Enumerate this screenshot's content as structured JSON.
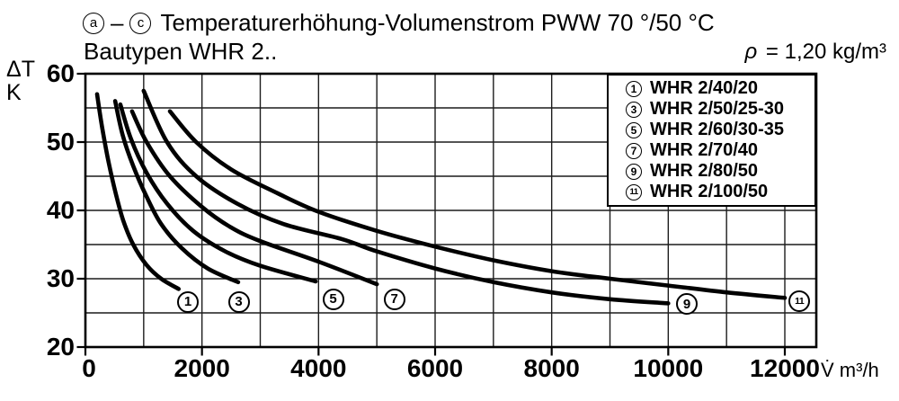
{
  "title": {
    "range_start": "a",
    "range_dash": "–",
    "range_end": "c",
    "text": "Temperaturerhöhung-Volumenstrom PWW 70 °/50 °C",
    "subtitle": "Bautypen WHR 2.."
  },
  "density": {
    "symbol": "ρ",
    "text": " = 1,20 kg/m³"
  },
  "axes": {
    "y_label_line1": "ΔT",
    "y_label_line2": "K",
    "y_ticks": [
      60,
      50,
      40,
      30,
      20
    ],
    "x_ticks": [
      0,
      2000,
      4000,
      6000,
      8000,
      10000,
      12000
    ],
    "x_unit": "V̇ m³/h"
  },
  "legend": {
    "items": [
      {
        "id": "1",
        "label": "WHR 2/40/20"
      },
      {
        "id": "3",
        "label": "WHR 2/50/25-30"
      },
      {
        "id": "5",
        "label": "WHR 2/60/30-35"
      },
      {
        "id": "7",
        "label": "WHR 2/70/40"
      },
      {
        "id": "9",
        "label": "WHR 2/80/50"
      },
      {
        "id": "11",
        "label": "WHR 2/100/50"
      }
    ]
  },
  "colors": {
    "ink": "#000000",
    "grid": "#1c1c1c",
    "paper": "#ffffff"
  },
  "chart_data": {
    "type": "line",
    "title": "ⓐ – ⓒ Temperaturerhöhung-Volumenstrom PWW 70 °/50 °C",
    "subtitle": "Bautypen WHR 2..",
    "note": "ρ = 1,20 kg/m³",
    "xlabel": "V̇ m³/h",
    "ylabel": "ΔT K",
    "xlim": [
      0,
      12540
    ],
    "ylim": [
      20,
      60
    ],
    "x_gridline_step": 1000,
    "y_gridline_step": 5,
    "grid": "on",
    "legend_position": "top-right-inside",
    "series": [
      {
        "id": "1",
        "name": "WHR 2/40/20",
        "points": [
          [
            200,
            57
          ],
          [
            290,
            52
          ],
          [
            400,
            47
          ],
          [
            520,
            42.5
          ],
          [
            650,
            38.5
          ],
          [
            820,
            35
          ],
          [
            1050,
            32
          ],
          [
            1300,
            30
          ],
          [
            1600,
            28.5
          ]
        ],
        "label_at": [
          1760,
          26.6
        ]
      },
      {
        "id": "3",
        "name": "WHR 2/50/25-30",
        "points": [
          [
            510,
            56
          ],
          [
            640,
            51
          ],
          [
            820,
            46.5
          ],
          [
            1050,
            42
          ],
          [
            1300,
            38
          ],
          [
            1650,
            34.5
          ],
          [
            2100,
            31.5
          ],
          [
            2620,
            29.5
          ]
        ],
        "label_at": [
          2630,
          26.6
        ]
      },
      {
        "id": "5",
        "name": "WHR 2/60/30-35",
        "points": [
          [
            600,
            55.5
          ],
          [
            780,
            50.5
          ],
          [
            1050,
            45.5
          ],
          [
            1400,
            41
          ],
          [
            1850,
            37
          ],
          [
            2400,
            34
          ],
          [
            3000,
            31.9
          ],
          [
            3950,
            29.6
          ]
        ],
        "label_at": [
          4250,
          27
        ]
      },
      {
        "id": "7",
        "name": "WHR 2/70/40",
        "points": [
          [
            800,
            54.5
          ],
          [
            1050,
            50
          ],
          [
            1450,
            45
          ],
          [
            2000,
            40.5
          ],
          [
            2500,
            37.5
          ],
          [
            3000,
            35.5
          ],
          [
            4000,
            32.5
          ],
          [
            5000,
            29.2
          ]
        ],
        "label_at": [
          5300,
          27
        ]
      },
      {
        "id": "9",
        "name": "WHR 2/80/50",
        "points": [
          [
            1000,
            57.5
          ],
          [
            1400,
            50
          ],
          [
            1900,
            45
          ],
          [
            2600,
            41
          ],
          [
            3400,
            38
          ],
          [
            4400,
            35.8
          ],
          [
            5000,
            34
          ],
          [
            6000,
            31.5
          ],
          [
            7000,
            29.5
          ],
          [
            8000,
            28
          ],
          [
            9000,
            27
          ],
          [
            10000,
            26.4
          ]
        ],
        "label_at": [
          10320,
          26.3
        ]
      },
      {
        "id": "11",
        "name": "WHR 2/100/50",
        "points": [
          [
            1450,
            54.5
          ],
          [
            1900,
            50
          ],
          [
            2500,
            46
          ],
          [
            3300,
            42.5
          ],
          [
            4000,
            39.8
          ],
          [
            5000,
            37
          ],
          [
            6000,
            34.7
          ],
          [
            7000,
            32.7
          ],
          [
            8000,
            31.1
          ],
          [
            9000,
            30
          ],
          [
            10000,
            29
          ],
          [
            11000,
            28
          ],
          [
            12000,
            27.2
          ]
        ],
        "label_at": [
          12250,
          26.7
        ]
      }
    ]
  }
}
